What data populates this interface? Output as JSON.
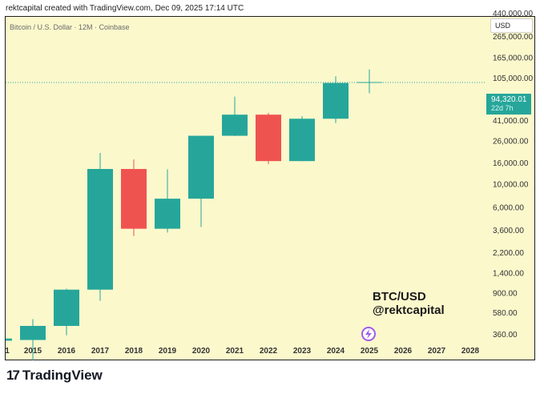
{
  "header": {
    "text": "rektcapital created with TradingView.com, Dec 09, 2025 17:14 UTC"
  },
  "chart_title": "Bitcoin / U.S. Dollar · 12M · Coinbase",
  "currency_button": "USD",
  "watermark": {
    "line1": "BTC/USD",
    "line2": "@rektcapital"
  },
  "footer": {
    "brand": "TradingView",
    "logo_mark": "17"
  },
  "current_price": {
    "value": "94,320.01",
    "countdown": "22d 7h"
  },
  "colors": {
    "up": "#26a69a",
    "down": "#ef5350",
    "background": "#fbf8cc"
  },
  "chart_data": {
    "type": "candlestick",
    "title": "Bitcoin / U.S. Dollar · 12M · Coinbase",
    "scale": "log",
    "y_tick_labels": [
      "440,000.00",
      "265,000.00",
      "165,000.00",
      "105,000.00",
      "65,000.00",
      "41,000.00",
      "26,000.00",
      "16,000.00",
      "10,000.00",
      "6,000.00",
      "3,600.00",
      "2,200.00",
      "1,400.00",
      "900.00",
      "580.00",
      "360.00"
    ],
    "y_tick_values": [
      440000,
      265000,
      165000,
      105000,
      65000,
      41000,
      26000,
      16000,
      10000,
      6000,
      3600,
      2200,
      1400,
      900,
      580,
      360
    ],
    "x_tick_labels": [
      "1",
      "2015",
      "2016",
      "2017",
      "2018",
      "2019",
      "2020",
      "2021",
      "2022",
      "2023",
      "2024",
      "2025",
      "2026",
      "2027",
      "2028"
    ],
    "candles": [
      {
        "year": "2014",
        "open": 310,
        "high": 310,
        "close": 325,
        "low": 300
      },
      {
        "year": "2015",
        "open": 315,
        "high": 500,
        "close": 430,
        "low": 200
      },
      {
        "year": "2016",
        "open": 430,
        "high": 980,
        "close": 960,
        "low": 350
      },
      {
        "year": "2017",
        "open": 960,
        "high": 19800,
        "close": 13900,
        "low": 750
      },
      {
        "year": "2018",
        "open": 13900,
        "high": 17200,
        "close": 3700,
        "low": 3150
      },
      {
        "year": "2019",
        "open": 3700,
        "high": 13800,
        "close": 7200,
        "low": 3400
      },
      {
        "year": "2020",
        "open": 7200,
        "high": 29000,
        "close": 29000,
        "low": 3850
      },
      {
        "year": "2021",
        "open": 29000,
        "high": 69000,
        "close": 46300,
        "low": 28800
      },
      {
        "year": "2022",
        "open": 46300,
        "high": 48200,
        "close": 16550,
        "low": 15500
      },
      {
        "year": "2023",
        "open": 16550,
        "high": 44700,
        "close": 42300,
        "low": 16500
      },
      {
        "year": "2024",
        "open": 42300,
        "high": 108300,
        "close": 93400,
        "low": 38500
      },
      {
        "year": "2025",
        "open": 93400,
        "high": 126000,
        "close": 94320,
        "low": 74400
      }
    ],
    "current_price_line": 94320.01,
    "legend": "none"
  }
}
